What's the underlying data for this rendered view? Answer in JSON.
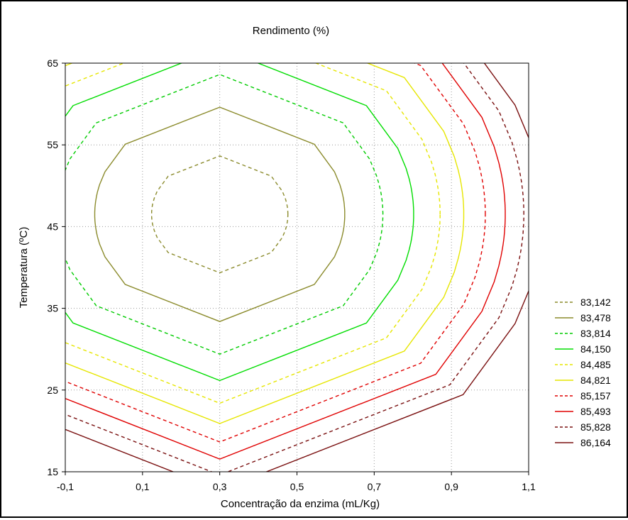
{
  "chart_data": {
    "type": "contour",
    "title": "Rendimento (%)",
    "xlabel": "Concentração da enzima (mL/Kg)",
    "ylabel": "Temperatura (ºC)",
    "xlim": [
      -0.1,
      1.1
    ],
    "ylim": [
      15,
      65
    ],
    "x_ticks": [
      "-0,1",
      "0,1",
      "0,3",
      "0,5",
      "0,7",
      "0,9",
      "1,1"
    ],
    "y_ticks": [
      "15",
      "25",
      "35",
      "45",
      "55",
      "65"
    ],
    "grid": true,
    "legend_position": "right",
    "model": {
      "center_x": 0.3,
      "center_y": 46.5,
      "min_value": 83.0,
      "a": 4.56,
      "b": 0.00278,
      "c": 0.0
    },
    "levels": [
      {
        "label": "83,142",
        "value": 83.142,
        "color": "#8b8b2c",
        "dashed": true
      },
      {
        "label": "83,478",
        "value": 83.478,
        "color": "#8b8b2c",
        "dashed": false
      },
      {
        "label": "83,814",
        "value": 83.814,
        "color": "#00cc00",
        "dashed": true
      },
      {
        "label": "84,150",
        "value": 84.15,
        "color": "#00dd00",
        "dashed": false
      },
      {
        "label": "84,485",
        "value": 84.485,
        "color": "#e6e600",
        "dashed": true
      },
      {
        "label": "84,821",
        "value": 84.821,
        "color": "#e6e600",
        "dashed": false
      },
      {
        "label": "85,157",
        "value": 85.157,
        "color": "#e00000",
        "dashed": true
      },
      {
        "label": "85,493",
        "value": 85.493,
        "color": "#e00000",
        "dashed": false
      },
      {
        "label": "85,828",
        "value": 85.828,
        "color": "#7a1010",
        "dashed": true
      },
      {
        "label": "86,164",
        "value": 86.164,
        "color": "#7a1010",
        "dashed": false
      }
    ]
  }
}
